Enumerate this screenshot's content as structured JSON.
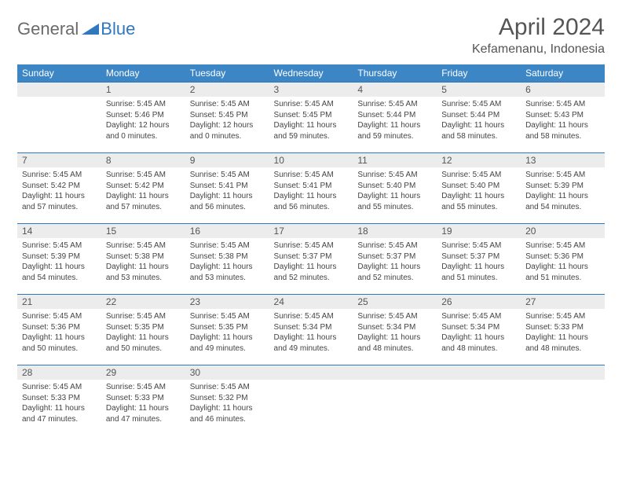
{
  "logo": {
    "text1": "General",
    "text2": "Blue",
    "color1": "#6b6b6b",
    "color2": "#2f78bd"
  },
  "title": "April 2024",
  "location": "Kefamenanu, Indonesia",
  "header_bg": "#3d86c6",
  "daynum_bg": "#ececec",
  "rule_color": "#2f78bd",
  "weekdays": [
    "Sunday",
    "Monday",
    "Tuesday",
    "Wednesday",
    "Thursday",
    "Friday",
    "Saturday"
  ],
  "weeks": [
    [
      null,
      {
        "n": "1",
        "sr": "Sunrise: 5:45 AM",
        "ss": "Sunset: 5:46 PM",
        "dl": "Daylight: 12 hours and 0 minutes."
      },
      {
        "n": "2",
        "sr": "Sunrise: 5:45 AM",
        "ss": "Sunset: 5:45 PM",
        "dl": "Daylight: 12 hours and 0 minutes."
      },
      {
        "n": "3",
        "sr": "Sunrise: 5:45 AM",
        "ss": "Sunset: 5:45 PM",
        "dl": "Daylight: 11 hours and 59 minutes."
      },
      {
        "n": "4",
        "sr": "Sunrise: 5:45 AM",
        "ss": "Sunset: 5:44 PM",
        "dl": "Daylight: 11 hours and 59 minutes."
      },
      {
        "n": "5",
        "sr": "Sunrise: 5:45 AM",
        "ss": "Sunset: 5:44 PM",
        "dl": "Daylight: 11 hours and 58 minutes."
      },
      {
        "n": "6",
        "sr": "Sunrise: 5:45 AM",
        "ss": "Sunset: 5:43 PM",
        "dl": "Daylight: 11 hours and 58 minutes."
      }
    ],
    [
      {
        "n": "7",
        "sr": "Sunrise: 5:45 AM",
        "ss": "Sunset: 5:42 PM",
        "dl": "Daylight: 11 hours and 57 minutes."
      },
      {
        "n": "8",
        "sr": "Sunrise: 5:45 AM",
        "ss": "Sunset: 5:42 PM",
        "dl": "Daylight: 11 hours and 57 minutes."
      },
      {
        "n": "9",
        "sr": "Sunrise: 5:45 AM",
        "ss": "Sunset: 5:41 PM",
        "dl": "Daylight: 11 hours and 56 minutes."
      },
      {
        "n": "10",
        "sr": "Sunrise: 5:45 AM",
        "ss": "Sunset: 5:41 PM",
        "dl": "Daylight: 11 hours and 56 minutes."
      },
      {
        "n": "11",
        "sr": "Sunrise: 5:45 AM",
        "ss": "Sunset: 5:40 PM",
        "dl": "Daylight: 11 hours and 55 minutes."
      },
      {
        "n": "12",
        "sr": "Sunrise: 5:45 AM",
        "ss": "Sunset: 5:40 PM",
        "dl": "Daylight: 11 hours and 55 minutes."
      },
      {
        "n": "13",
        "sr": "Sunrise: 5:45 AM",
        "ss": "Sunset: 5:39 PM",
        "dl": "Daylight: 11 hours and 54 minutes."
      }
    ],
    [
      {
        "n": "14",
        "sr": "Sunrise: 5:45 AM",
        "ss": "Sunset: 5:39 PM",
        "dl": "Daylight: 11 hours and 54 minutes."
      },
      {
        "n": "15",
        "sr": "Sunrise: 5:45 AM",
        "ss": "Sunset: 5:38 PM",
        "dl": "Daylight: 11 hours and 53 minutes."
      },
      {
        "n": "16",
        "sr": "Sunrise: 5:45 AM",
        "ss": "Sunset: 5:38 PM",
        "dl": "Daylight: 11 hours and 53 minutes."
      },
      {
        "n": "17",
        "sr": "Sunrise: 5:45 AM",
        "ss": "Sunset: 5:37 PM",
        "dl": "Daylight: 11 hours and 52 minutes."
      },
      {
        "n": "18",
        "sr": "Sunrise: 5:45 AM",
        "ss": "Sunset: 5:37 PM",
        "dl": "Daylight: 11 hours and 52 minutes."
      },
      {
        "n": "19",
        "sr": "Sunrise: 5:45 AM",
        "ss": "Sunset: 5:37 PM",
        "dl": "Daylight: 11 hours and 51 minutes."
      },
      {
        "n": "20",
        "sr": "Sunrise: 5:45 AM",
        "ss": "Sunset: 5:36 PM",
        "dl": "Daylight: 11 hours and 51 minutes."
      }
    ],
    [
      {
        "n": "21",
        "sr": "Sunrise: 5:45 AM",
        "ss": "Sunset: 5:36 PM",
        "dl": "Daylight: 11 hours and 50 minutes."
      },
      {
        "n": "22",
        "sr": "Sunrise: 5:45 AM",
        "ss": "Sunset: 5:35 PM",
        "dl": "Daylight: 11 hours and 50 minutes."
      },
      {
        "n": "23",
        "sr": "Sunrise: 5:45 AM",
        "ss": "Sunset: 5:35 PM",
        "dl": "Daylight: 11 hours and 49 minutes."
      },
      {
        "n": "24",
        "sr": "Sunrise: 5:45 AM",
        "ss": "Sunset: 5:34 PM",
        "dl": "Daylight: 11 hours and 49 minutes."
      },
      {
        "n": "25",
        "sr": "Sunrise: 5:45 AM",
        "ss": "Sunset: 5:34 PM",
        "dl": "Daylight: 11 hours and 48 minutes."
      },
      {
        "n": "26",
        "sr": "Sunrise: 5:45 AM",
        "ss": "Sunset: 5:34 PM",
        "dl": "Daylight: 11 hours and 48 minutes."
      },
      {
        "n": "27",
        "sr": "Sunrise: 5:45 AM",
        "ss": "Sunset: 5:33 PM",
        "dl": "Daylight: 11 hours and 48 minutes."
      }
    ],
    [
      {
        "n": "28",
        "sr": "Sunrise: 5:45 AM",
        "ss": "Sunset: 5:33 PM",
        "dl": "Daylight: 11 hours and 47 minutes."
      },
      {
        "n": "29",
        "sr": "Sunrise: 5:45 AM",
        "ss": "Sunset: 5:33 PM",
        "dl": "Daylight: 11 hours and 47 minutes."
      },
      {
        "n": "30",
        "sr": "Sunrise: 5:45 AM",
        "ss": "Sunset: 5:32 PM",
        "dl": "Daylight: 11 hours and 46 minutes."
      },
      null,
      null,
      null,
      null
    ]
  ]
}
